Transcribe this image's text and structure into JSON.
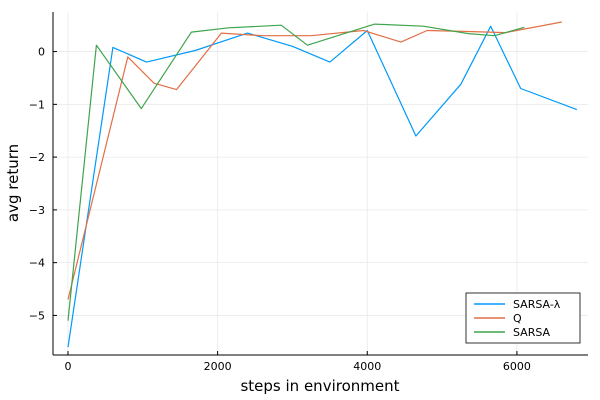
{
  "chart_data": {
    "type": "line",
    "title": "",
    "xlabel": "steps in environment",
    "ylabel": "avg return",
    "xlim": [
      -200,
      6950
    ],
    "ylim": [
      -5.75,
      0.75
    ],
    "xticks": [
      0,
      2000,
      4000,
      6000
    ],
    "yticks": [
      -5,
      -4,
      -3,
      -2,
      -1,
      0
    ],
    "xtick_labels": [
      "0",
      "2000",
      "4000",
      "6000"
    ],
    "ytick_labels": [
      "−5",
      "−4",
      "−3",
      "−2",
      "−1",
      "0"
    ],
    "grid": true,
    "legend_position": "bottom-right",
    "series": [
      {
        "name": "SARSA-λ",
        "color": "#009AFA",
        "x": [
          0,
          600,
          1050,
          1700,
          2400,
          3000,
          3500,
          4000,
          4650,
          5250,
          5650,
          6050,
          6800
        ],
        "y": [
          -5.6,
          0.08,
          -0.2,
          0.02,
          0.35,
          0.1,
          -0.2,
          0.4,
          -1.6,
          -0.62,
          0.48,
          -0.7,
          -1.1
        ]
      },
      {
        "name": "Q",
        "color": "#E26F46",
        "x": [
          0,
          800,
          1150,
          1450,
          2050,
          2600,
          3250,
          3950,
          4450,
          4800,
          5350,
          5850,
          6600
        ],
        "y": [
          -4.7,
          -0.1,
          -0.6,
          -0.72,
          0.35,
          0.3,
          0.3,
          0.4,
          0.18,
          0.4,
          0.38,
          0.36,
          0.56
        ]
      },
      {
        "name": "SARSA",
        "color": "#3EA44E",
        "x": [
          0,
          380,
          980,
          1650,
          2150,
          2850,
          3200,
          4100,
          4750,
          5350,
          5700,
          6100
        ],
        "y": [
          -5.1,
          0.12,
          -1.08,
          0.37,
          0.45,
          0.5,
          0.12,
          0.52,
          0.48,
          0.34,
          0.3,
          0.46
        ]
      }
    ]
  }
}
